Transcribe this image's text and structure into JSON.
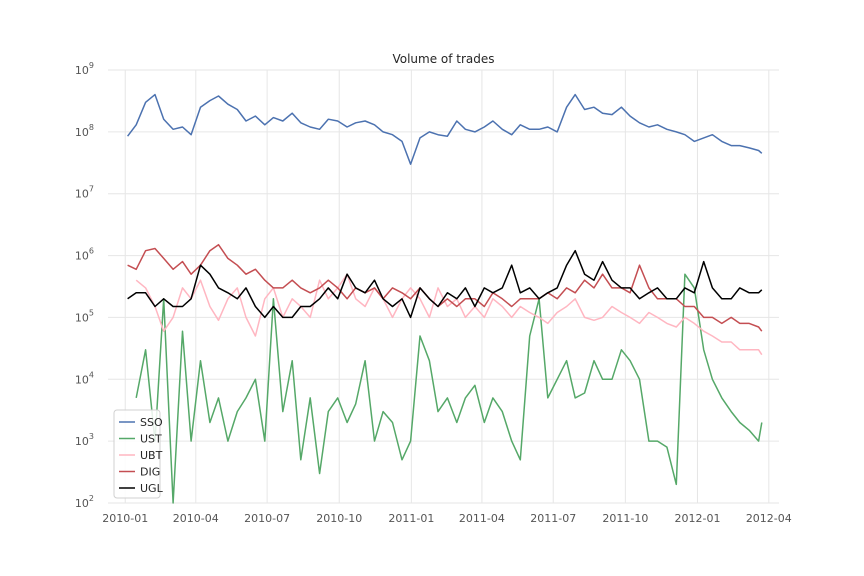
{
  "chart_data": {
    "type": "line",
    "title": "Volume of trades",
    "xlabel": "",
    "ylabel": "",
    "yscale": "log",
    "grid": true,
    "legend_position": "lower-left",
    "xlim": [
      "2009-12-10",
      "2012-04-14"
    ],
    "ylim": [
      100,
      1000000000
    ],
    "x_ticks": [
      "2010-01",
      "2010-04",
      "2010-07",
      "2010-10",
      "2011-01",
      "2011-04",
      "2011-07",
      "2011-10",
      "2012-01",
      "2012-04"
    ],
    "y_ticks": [
      {
        "base": "10",
        "exp": "2"
      },
      {
        "base": "10",
        "exp": "3"
      },
      {
        "base": "10",
        "exp": "4"
      },
      {
        "base": "10",
        "exp": "5"
      },
      {
        "base": "10",
        "exp": "6"
      },
      {
        "base": "10",
        "exp": "7"
      },
      {
        "base": "10",
        "exp": "8"
      },
      {
        "base": "10",
        "exp": "9"
      }
    ],
    "x": [
      "2010-01-04",
      "2010-01-15",
      "2010-01-27",
      "2010-02-08",
      "2010-02-19",
      "2010-03-03",
      "2010-03-15",
      "2010-03-26",
      "2010-04-07",
      "2010-04-19",
      "2010-04-30",
      "2010-05-12",
      "2010-05-24",
      "2010-06-04",
      "2010-06-16",
      "2010-06-28",
      "2010-07-09",
      "2010-07-21",
      "2010-08-02",
      "2010-08-13",
      "2010-08-25",
      "2010-09-06",
      "2010-09-17",
      "2010-09-29",
      "2010-10-11",
      "2010-10-22",
      "2010-11-03",
      "2010-11-15",
      "2010-11-26",
      "2010-12-08",
      "2010-12-20",
      "2010-12-31",
      "2011-01-12",
      "2011-01-24",
      "2011-02-04",
      "2011-02-16",
      "2011-02-28",
      "2011-03-11",
      "2011-03-23",
      "2011-04-04",
      "2011-04-15",
      "2011-04-27",
      "2011-05-09",
      "2011-05-20",
      "2011-06-01",
      "2011-06-13",
      "2011-06-24",
      "2011-07-06",
      "2011-07-18",
      "2011-07-29",
      "2011-08-10",
      "2011-08-22",
      "2011-09-02",
      "2011-09-14",
      "2011-09-26",
      "2011-10-07",
      "2011-10-19",
      "2011-10-31",
      "2011-11-11",
      "2011-11-23",
      "2011-12-05",
      "2011-12-16",
      "2011-12-28",
      "2012-01-09",
      "2012-01-20",
      "2012-02-01",
      "2012-02-13",
      "2012-02-24",
      "2012-03-07",
      "2012-03-19",
      "2012-03-23"
    ],
    "series": [
      {
        "name": "SSO",
        "color": "#4c72b0",
        "values": [
          85000000,
          130000000,
          300000000,
          400000000,
          160000000,
          110000000,
          120000000,
          90000000,
          250000000,
          320000000,
          380000000,
          280000000,
          230000000,
          150000000,
          180000000,
          130000000,
          170000000,
          150000000,
          200000000,
          140000000,
          120000000,
          110000000,
          160000000,
          150000000,
          120000000,
          140000000,
          150000000,
          130000000,
          100000000,
          90000000,
          70000000,
          30000000,
          80000000,
          100000000,
          90000000,
          85000000,
          150000000,
          110000000,
          100000000,
          120000000,
          150000000,
          110000000,
          90000000,
          130000000,
          110000000,
          110000000,
          120000000,
          100000000,
          250000000,
          400000000,
          230000000,
          250000000,
          200000000,
          190000000,
          250000000,
          180000000,
          140000000,
          120000000,
          130000000,
          110000000,
          100000000,
          90000000,
          70000000,
          80000000,
          90000000,
          70000000,
          60000000,
          60000000,
          55000000,
          50000000,
          45000000
        ]
      },
      {
        "name": "UST",
        "color": "#55a868",
        "values": [
          null,
          5000,
          30000,
          1000,
          200000,
          100,
          60000,
          1000,
          20000,
          2000,
          5000,
          1000,
          3000,
          5000,
          10000,
          1000,
          200000,
          3000,
          20000,
          500,
          5000,
          300,
          3000,
          5000,
          2000,
          4000,
          20000,
          1000,
          3000,
          2000,
          500,
          1000,
          50000,
          20000,
          3000,
          5000,
          2000,
          5000,
          8000,
          2000,
          5000,
          3000,
          1000,
          500,
          50000,
          200000,
          5000,
          10000,
          20000,
          5000,
          6000,
          20000,
          10000,
          10000,
          30000,
          20000,
          10000,
          1000,
          1000,
          800,
          200,
          500000,
          300000,
          30000,
          10000,
          5000,
          3000,
          2000,
          1500,
          1000,
          2000
        ]
      },
      {
        "name": "UBT",
        "color": "#ffb6c1",
        "values": [
          null,
          400000,
          300000,
          150000,
          60000,
          100000,
          300000,
          200000,
          400000,
          150000,
          90000,
          200000,
          300000,
          100000,
          50000,
          200000,
          300000,
          100000,
          200000,
          150000,
          100000,
          400000,
          200000,
          300000,
          500000,
          200000,
          150000,
          300000,
          200000,
          100000,
          200000,
          300000,
          200000,
          100000,
          300000,
          150000,
          200000,
          100000,
          150000,
          100000,
          200000,
          150000,
          100000,
          150000,
          120000,
          100000,
          80000,
          120000,
          150000,
          200000,
          100000,
          90000,
          100000,
          150000,
          120000,
          100000,
          80000,
          120000,
          100000,
          80000,
          70000,
          100000,
          80000,
          60000,
          50000,
          40000,
          40000,
          30000,
          30000,
          30000,
          25000
        ]
      },
      {
        "name": "DIG",
        "color": "#c44e52",
        "values": [
          700000,
          600000,
          1200000,
          1300000,
          900000,
          600000,
          800000,
          500000,
          700000,
          1200000,
          1500000,
          900000,
          700000,
          500000,
          600000,
          400000,
          300000,
          300000,
          400000,
          300000,
          250000,
          300000,
          400000,
          300000,
          200000,
          300000,
          250000,
          300000,
          200000,
          300000,
          250000,
          200000,
          300000,
          200000,
          150000,
          200000,
          150000,
          200000,
          200000,
          150000,
          250000,
          200000,
          150000,
          200000,
          200000,
          200000,
          250000,
          200000,
          300000,
          250000,
          400000,
          300000,
          500000,
          300000,
          300000,
          250000,
          700000,
          300000,
          200000,
          200000,
          200000,
          150000,
          150000,
          100000,
          100000,
          80000,
          100000,
          80000,
          80000,
          70000,
          60000
        ]
      },
      {
        "name": "UGL",
        "color": "#000000",
        "values": [
          200000,
          250000,
          250000,
          150000,
          200000,
          150000,
          150000,
          200000,
          700000,
          500000,
          300000,
          250000,
          200000,
          300000,
          150000,
          100000,
          150000,
          100000,
          100000,
          150000,
          150000,
          200000,
          300000,
          200000,
          500000,
          300000,
          250000,
          400000,
          200000,
          150000,
          200000,
          100000,
          300000,
          200000,
          150000,
          250000,
          200000,
          300000,
          150000,
          300000,
          250000,
          300000,
          700000,
          250000,
          300000,
          200000,
          250000,
          300000,
          700000,
          1200000,
          500000,
          400000,
          800000,
          400000,
          300000,
          300000,
          200000,
          250000,
          300000,
          200000,
          200000,
          300000,
          250000,
          800000,
          300000,
          200000,
          200000,
          300000,
          250000,
          250000,
          280000
        ]
      }
    ]
  }
}
